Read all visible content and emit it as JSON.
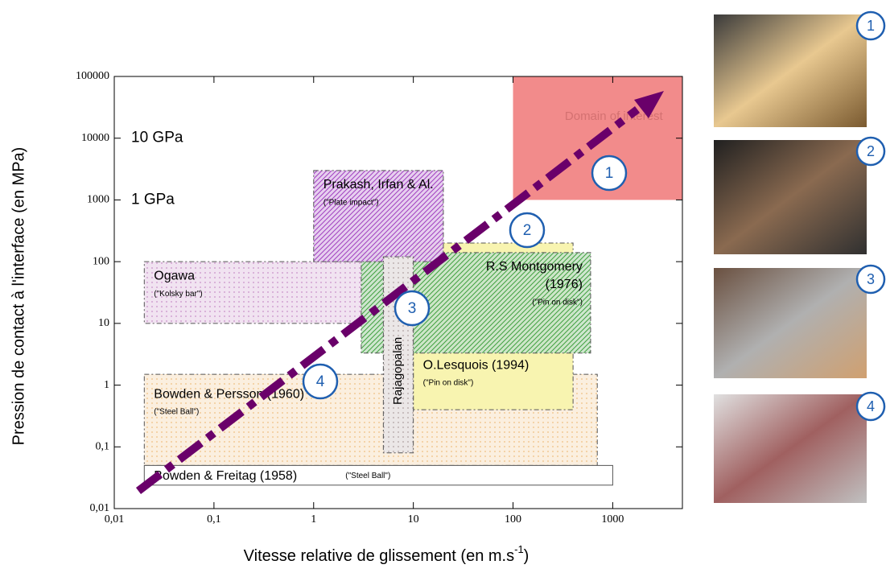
{
  "chart_data": {
    "type": "rect",
    "xlabel": "Vitesse relative de glissement (en m.s",
    "xlabel_sup": "-1",
    "xlabel_end": ")",
    "ylabel": "Pression de contact à l'interface (en MPa)",
    "log_x": true,
    "log_y": true,
    "xlim": [
      0.01,
      5000
    ],
    "ylim": [
      0.01,
      100000
    ],
    "xticks": [
      {
        "value": 0.01,
        "label": "0,01"
      },
      {
        "value": 0.1,
        "label": "0,1"
      },
      1,
      10,
      100,
      1000
    ],
    "yticks": [
      {
        "value": 0.01,
        "label": "0,01"
      },
      {
        "value": 0.1,
        "label": "0,1"
      },
      1,
      10,
      100,
      1000,
      10000,
      100000
    ],
    "annotations": [
      {
        "text": "10 GPa",
        "y": 10000
      },
      {
        "text": "1 GPa",
        "y": 1000
      }
    ],
    "regions": [
      {
        "label": "Domain of interest",
        "x": [
          100,
          5000
        ],
        "y": [
          1000,
          100000
        ],
        "color": "#f28b8b",
        "pattern": "solid"
      },
      {
        "label": "Bowden & Persson (1960)",
        "sublabel": "(\"Steel Ball\")",
        "x": [
          0.02,
          700
        ],
        "y": [
          0.05,
          1.5
        ],
        "color": "#f0c080",
        "pattern": "dots"
      },
      {
        "label": "O.Lesquois (1994)",
        "sublabel": "(\"Pin on disk\")",
        "x": [
          10,
          400
        ],
        "y": [
          0.4,
          200
        ],
        "color": "#f8f4b0",
        "pattern": "solid"
      },
      {
        "label": "Ogawa",
        "sublabel": "(\"Kolsky bar\")",
        "x": [
          0.02,
          8
        ],
        "y": [
          10,
          100
        ],
        "color": "#c890c8",
        "pattern": "dots"
      },
      {
        "label": "R.S Montgomery",
        "label2": "(1976)",
        "sublabel": "(\"Pin on disk\")",
        "x": [
          3,
          600
        ],
        "y": [
          3.3,
          140
        ],
        "color": "#40a040",
        "pattern": "hatch"
      },
      {
        "label": "Prakash, Irfan & Al.",
        "sublabel": "(\"Plate impact\")",
        "x": [
          1,
          20
        ],
        "y": [
          100,
          3000
        ],
        "color": "#a040c0",
        "pattern": "hatch"
      },
      {
        "label": "Rajagopalan",
        "x": [
          5,
          10
        ],
        "y": [
          0.08,
          120
        ],
        "color": "#b0a0a0",
        "pattern": "dots"
      },
      {
        "label": "Bowden & Freitag (1958)",
        "sublabel": "(\"Steel Ball\")",
        "x": [
          0.02,
          1000
        ],
        "y": [
          0.024,
          0.05
        ],
        "color": "#ffffff",
        "pattern": "solid"
      }
    ],
    "arrow_color": "#6a006a",
    "markers": [
      "1",
      "2",
      "3",
      "4"
    ]
  },
  "photos": [
    "1",
    "2",
    "3",
    "4"
  ]
}
